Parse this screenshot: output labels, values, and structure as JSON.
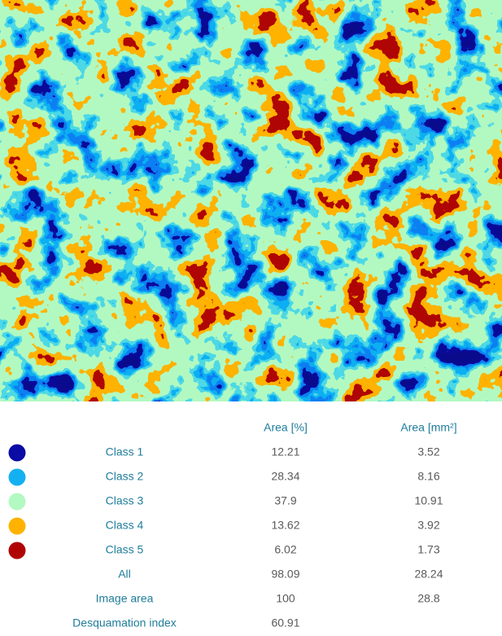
{
  "table": {
    "columns": [
      "Area [%]",
      "Area [mm²]"
    ],
    "rows": [
      {
        "label": "Class 1",
        "color": "#0b0ba6",
        "values": [
          12.21,
          3.52
        ]
      },
      {
        "label": "Class 2",
        "color": "#14b1f2",
        "values": [
          28.34,
          8.16
        ]
      },
      {
        "label": "Class 3",
        "color": "#b3f9c2",
        "values": [
          37.9,
          10.91
        ]
      },
      {
        "label": "Class 4",
        "color": "#ffb300",
        "values": [
          13.62,
          3.92
        ]
      },
      {
        "label": "Class 5",
        "color": "#b00404",
        "values": [
          6.02,
          1.73
        ]
      },
      {
        "label": "All",
        "values": [
          98.09,
          28.24
        ]
      },
      {
        "label": "Image area",
        "values": [
          100,
          28.8
        ]
      },
      {
        "label": "Desquamation index",
        "values": [
          60.91
        ]
      }
    ]
  }
}
